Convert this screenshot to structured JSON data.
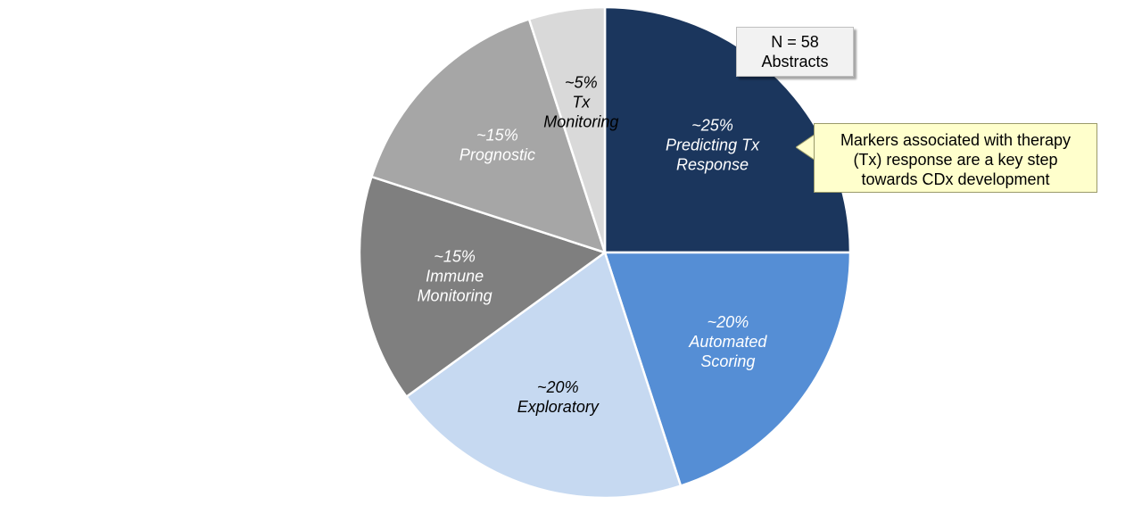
{
  "chart_data": {
    "type": "pie",
    "categories": [
      "Predicting Tx Response",
      "Automated Scoring",
      "Exploratory",
      "Immune Monitoring",
      "Prognostic",
      "Tx Monitoring"
    ],
    "values": [
      25,
      20,
      20,
      15,
      15,
      5
    ],
    "slices": [
      {
        "value_label": "~25%",
        "name_lines": [
          "Predicting Tx",
          "Response"
        ],
        "color": "#1b365d",
        "text_color": "#ffffff"
      },
      {
        "value_label": "~20%",
        "name_lines": [
          "Automated",
          "Scoring"
        ],
        "color": "#558ed5",
        "text_color": "#ffffff"
      },
      {
        "value_label": "~20%",
        "name_lines": [
          "Exploratory"
        ],
        "color": "#c6d9f1",
        "text_color": "#000000"
      },
      {
        "value_label": "~15%",
        "name_lines": [
          "Immune",
          "Monitoring"
        ],
        "color": "#7f7f7f",
        "text_color": "#ffffff"
      },
      {
        "value_label": "~15%",
        "name_lines": [
          "Prognostic"
        ],
        "color": "#a6a6a6",
        "text_color": "#ffffff"
      },
      {
        "value_label": "~5%",
        "name_lines": [
          "Tx",
          "Monitoring"
        ],
        "color": "#d9d9d9",
        "text_color": "#000000"
      }
    ],
    "start": "12 o'clock",
    "direction": "clockwise"
  },
  "annotations": {
    "sample_size": {
      "line1": "N = 58",
      "line2": "Abstracts"
    },
    "note": {
      "line1": "Markers associated with therapy",
      "line2": "(Tx) response are a key step",
      "line3": "towards CDx development"
    }
  },
  "colors": {
    "note_background": "#ffffcc",
    "sample_box_background": "#f2f2f2"
  }
}
